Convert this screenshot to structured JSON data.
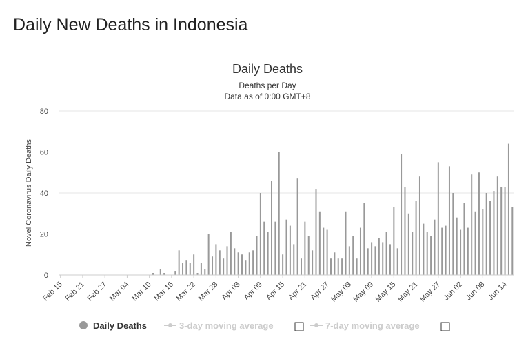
{
  "page_title": "Daily New Deaths in Indonesia",
  "chart_data": {
    "type": "bar",
    "title": "Daily Deaths",
    "subtitle": [
      "Deaths per Day",
      "Data as of 0:00 GMT+8"
    ],
    "y_label": "Novel Coronavirus Daily Deaths",
    "categories": [
      "Feb 15",
      null,
      null,
      null,
      null,
      null,
      "Feb 21",
      null,
      null,
      null,
      null,
      null,
      "Feb 27",
      null,
      null,
      null,
      null,
      null,
      "Mar 04",
      null,
      null,
      null,
      null,
      null,
      "Mar 10",
      null,
      null,
      null,
      null,
      null,
      "Mar 16",
      null,
      null,
      null,
      null,
      null,
      "Mar 22",
      null,
      null,
      null,
      null,
      null,
      "Mar 28",
      null,
      null,
      null,
      null,
      null,
      "Apr 03",
      null,
      null,
      null,
      null,
      null,
      "Apr 09",
      null,
      null,
      null,
      null,
      null,
      "Apr 15",
      null,
      null,
      null,
      null,
      null,
      "Apr 21",
      null,
      null,
      null,
      null,
      null,
      "Apr 27",
      null,
      null,
      null,
      null,
      null,
      "May 03",
      null,
      null,
      null,
      null,
      null,
      "May 09",
      null,
      null,
      null,
      null,
      null,
      "May 15",
      null,
      null,
      null,
      null,
      null,
      "May 21",
      null,
      null,
      null,
      null,
      null,
      "May 27",
      null,
      null,
      null,
      null,
      null,
      "Jun 02",
      null,
      null,
      null,
      null,
      null,
      "Jun 08",
      null,
      null,
      null,
      null,
      null,
      "Jun 14",
      null,
      null
    ],
    "series": [
      {
        "name": "Daily Deaths",
        "color": "#999999",
        "values": [
          0,
          0,
          0,
          0,
          0,
          0,
          0,
          0,
          0,
          0,
          0,
          0,
          0,
          0,
          0,
          0,
          0,
          0,
          0,
          0,
          0,
          0,
          0,
          0,
          0,
          1,
          0,
          3,
          1,
          0,
          0,
          2,
          12,
          6,
          7,
          6,
          10,
          1,
          6,
          3,
          20,
          9,
          15,
          12,
          8,
          14,
          21,
          13,
          11,
          10,
          7,
          11,
          12,
          19,
          40,
          26,
          21,
          46,
          26,
          60,
          10,
          27,
          24,
          15,
          47,
          8,
          26,
          19,
          12,
          42,
          31,
          23,
          22,
          8,
          11,
          8,
          8,
          31,
          14,
          19,
          8,
          23,
          35,
          13,
          16,
          14,
          18,
          16,
          21,
          15,
          33,
          13,
          59,
          43,
          30,
          21,
          36,
          48,
          25,
          21,
          19,
          27,
          55,
          23,
          24,
          53,
          40,
          28,
          22,
          35,
          23,
          49,
          31,
          50,
          32,
          40,
          36,
          41,
          48,
          43,
          43,
          64,
          33
        ]
      }
    ],
    "inactive_series": [
      "3-day moving average",
      "7-day moving average"
    ],
    "ylim": [
      0,
      80
    ],
    "yticks": [
      0,
      20,
      40,
      60,
      80
    ],
    "grid": true
  }
}
